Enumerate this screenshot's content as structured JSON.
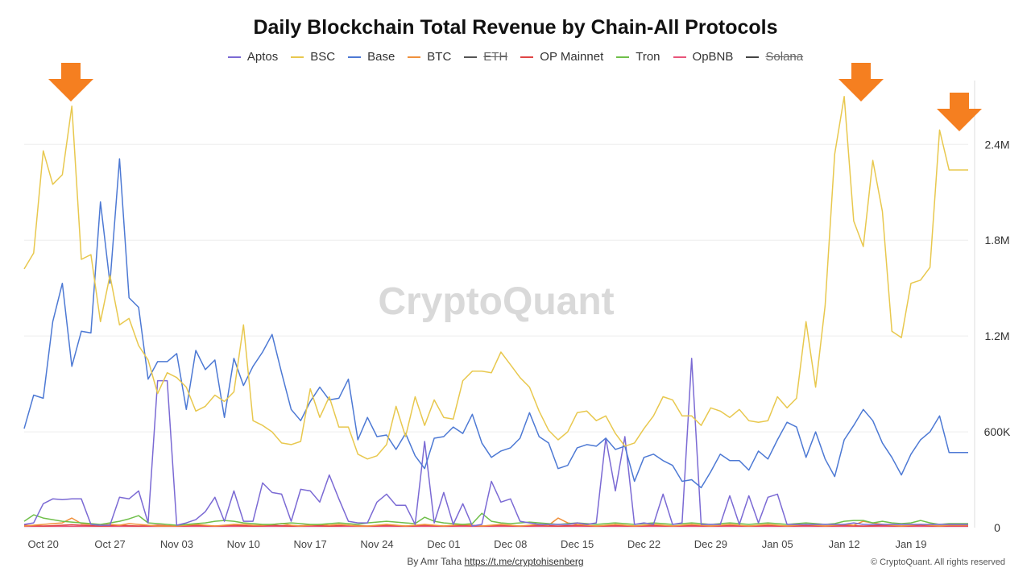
{
  "chart_data": {
    "type": "line",
    "title": "Daily Blockchain Total Revenue by Chain-All Protocols",
    "x_tick_labels": [
      "Oct 20",
      "Oct 27",
      "Nov 03",
      "Nov 10",
      "Nov 17",
      "Nov 24",
      "Dec 01",
      "Dec 08",
      "Dec 15",
      "Dec 22",
      "Dec 29",
      "Jan 05",
      "Jan 12",
      "Jan 19"
    ],
    "y_tick_labels": [
      "0",
      "600K",
      "1.2M",
      "1.8M",
      "2.4M"
    ],
    "ylim": [
      0,
      2800000
    ],
    "x_start": "Oct 20",
    "grid": true,
    "watermark": "CryptoQuant",
    "legend_position": "top-center",
    "series": [
      {
        "name": "Aptos",
        "color": "#7b6ad4",
        "hidden": false,
        "values": [
          20000,
          30000,
          150000,
          180000,
          175000,
          180000,
          180000,
          20000,
          15000,
          15000,
          190000,
          180000,
          230000,
          30000,
          920000,
          920000,
          15000,
          30000,
          50000,
          100000,
          190000,
          40000,
          230000,
          40000,
          40000,
          280000,
          220000,
          210000,
          40000,
          240000,
          230000,
          160000,
          330000,
          180000,
          40000,
          30000,
          30000,
          160000,
          210000,
          140000,
          140000,
          20000,
          540000,
          30000,
          220000,
          20000,
          150000,
          10000,
          20000,
          290000,
          160000,
          180000,
          40000,
          30000,
          20000,
          20000,
          20000,
          20000,
          30000,
          20000,
          30000,
          560000,
          230000,
          570000,
          20000,
          30000,
          20000,
          210000,
          20000,
          30000,
          1060000,
          20000,
          20000,
          20000,
          200000,
          20000,
          200000,
          30000,
          190000,
          210000,
          20000,
          20000,
          20000,
          20000,
          20000,
          20000,
          20000,
          30000,
          20000,
          20000,
          20000,
          20000,
          20000,
          20000,
          20000,
          20000,
          20000,
          20000,
          20000,
          20000
        ]
      },
      {
        "name": "BSC",
        "color": "#e8c84e",
        "hidden": false,
        "values": [
          1620000,
          1720000,
          2360000,
          2150000,
          2210000,
          2640000,
          1680000,
          1710000,
          1290000,
          1580000,
          1270000,
          1310000,
          1140000,
          1050000,
          840000,
          970000,
          940000,
          880000,
          730000,
          760000,
          830000,
          790000,
          850000,
          1270000,
          670000,
          640000,
          600000,
          530000,
          520000,
          540000,
          870000,
          690000,
          820000,
          630000,
          630000,
          460000,
          430000,
          450000,
          520000,
          760000,
          570000,
          820000,
          640000,
          800000,
          690000,
          680000,
          920000,
          980000,
          980000,
          970000,
          1100000,
          1020000,
          940000,
          880000,
          730000,
          610000,
          550000,
          600000,
          720000,
          730000,
          670000,
          700000,
          590000,
          510000,
          530000,
          620000,
          700000,
          820000,
          800000,
          700000,
          700000,
          640000,
          750000,
          730000,
          690000,
          740000,
          670000,
          660000,
          670000,
          820000,
          750000,
          810000,
          1290000,
          880000,
          1390000,
          2340000,
          2700000,
          1920000,
          1760000,
          2300000,
          1980000,
          1230000,
          1190000,
          1530000,
          1550000,
          1630000,
          2490000,
          2240000,
          2240000,
          2240000
        ]
      },
      {
        "name": "Base",
        "color": "#4d79d4",
        "hidden": false,
        "values": [
          620000,
          830000,
          810000,
          1290000,
          1530000,
          1010000,
          1230000,
          1220000,
          2040000,
          1530000,
          2310000,
          1440000,
          1380000,
          930000,
          1040000,
          1040000,
          1090000,
          740000,
          1110000,
          990000,
          1050000,
          690000,
          1060000,
          890000,
          1010000,
          1100000,
          1210000,
          970000,
          740000,
          670000,
          790000,
          880000,
          800000,
          810000,
          930000,
          550000,
          690000,
          570000,
          580000,
          490000,
          590000,
          450000,
          370000,
          560000,
          570000,
          630000,
          590000,
          710000,
          530000,
          440000,
          480000,
          500000,
          560000,
          720000,
          570000,
          530000,
          370000,
          390000,
          500000,
          520000,
          510000,
          560000,
          490000,
          510000,
          290000,
          440000,
          460000,
          420000,
          390000,
          290000,
          300000,
          250000,
          350000,
          460000,
          420000,
          420000,
          360000,
          480000,
          430000,
          550000,
          660000,
          630000,
          440000,
          600000,
          430000,
          320000,
          550000,
          640000,
          740000,
          670000,
          530000,
          440000,
          330000,
          460000,
          550000,
          600000,
          700000,
          470000,
          470000,
          470000
        ]
      },
      {
        "name": "BTC",
        "color": "#f0913c",
        "hidden": false,
        "values": [
          10000,
          15000,
          20000,
          25000,
          30000,
          60000,
          25000,
          20000,
          15000,
          20000,
          15000,
          25000,
          20000,
          15000,
          10000,
          10000,
          10000,
          15000,
          20000,
          15000,
          10000,
          15000,
          20000,
          20000,
          15000,
          15000,
          20000,
          25000,
          15000,
          10000,
          15000,
          20000,
          15000,
          20000,
          15000,
          10000,
          10000,
          15000,
          20000,
          15000,
          10000,
          15000,
          20000,
          15000,
          10000,
          15000,
          20000,
          15000,
          10000,
          15000,
          20000,
          15000,
          10000,
          15000,
          20000,
          15000,
          60000,
          30000,
          20000,
          15000,
          10000,
          15000,
          20000,
          15000,
          10000,
          15000,
          20000,
          15000,
          10000,
          15000,
          20000,
          15000,
          10000,
          15000,
          20000,
          15000,
          10000,
          15000,
          20000,
          15000,
          10000,
          15000,
          20000,
          15000,
          10000,
          15000,
          20000,
          15000,
          40000,
          30000,
          20000,
          15000,
          10000,
          15000,
          20000,
          15000,
          10000,
          15000,
          15000,
          15000
        ]
      },
      {
        "name": "ETH",
        "color": "#555555",
        "hidden": true,
        "values": []
      },
      {
        "name": "OP Mainnet",
        "color": "#e04545",
        "hidden": false,
        "values": [
          15000,
          12000,
          10000,
          12000,
          15000,
          18000,
          15000,
          12000,
          10000,
          12000,
          15000,
          12000,
          10000,
          12000,
          15000,
          12000,
          10000,
          12000,
          15000,
          12000,
          10000,
          12000,
          15000,
          12000,
          10000,
          12000,
          15000,
          12000,
          10000,
          12000,
          15000,
          12000,
          10000,
          12000,
          15000,
          12000,
          10000,
          12000,
          15000,
          12000,
          10000,
          12000,
          15000,
          12000,
          10000,
          12000,
          15000,
          12000,
          10000,
          12000,
          15000,
          12000,
          10000,
          12000,
          15000,
          12000,
          10000,
          12000,
          15000,
          12000,
          10000,
          12000,
          15000,
          12000,
          10000,
          12000,
          15000,
          12000,
          10000,
          12000,
          15000,
          12000,
          10000,
          12000,
          15000,
          12000,
          10000,
          12000,
          15000,
          12000,
          10000,
          12000,
          15000,
          12000,
          10000,
          12000,
          15000,
          12000,
          10000,
          12000,
          15000,
          12000,
          10000,
          12000,
          15000,
          12000,
          10000,
          12000,
          12000,
          12000
        ]
      },
      {
        "name": "Tron",
        "color": "#6fbf4a",
        "hidden": false,
        "values": [
          40000,
          80000,
          60000,
          50000,
          40000,
          35000,
          30000,
          25000,
          20000,
          30000,
          40000,
          55000,
          75000,
          30000,
          25000,
          20000,
          15000,
          20000,
          25000,
          30000,
          40000,
          45000,
          40000,
          30000,
          25000,
          20000,
          20000,
          25000,
          30000,
          25000,
          20000,
          20000,
          25000,
          30000,
          25000,
          20000,
          30000,
          35000,
          40000,
          35000,
          30000,
          25000,
          65000,
          40000,
          30000,
          25000,
          20000,
          25000,
          90000,
          40000,
          30000,
          25000,
          30000,
          35000,
          30000,
          25000,
          20000,
          25000,
          30000,
          25000,
          20000,
          25000,
          30000,
          25000,
          20000,
          25000,
          30000,
          25000,
          20000,
          25000,
          30000,
          25000,
          20000,
          25000,
          30000,
          25000,
          20000,
          25000,
          30000,
          25000,
          20000,
          25000,
          30000,
          25000,
          20000,
          25000,
          40000,
          45000,
          45000,
          30000,
          40000,
          30000,
          25000,
          30000,
          45000,
          30000,
          20000,
          25000,
          25000,
          25000
        ]
      },
      {
        "name": "OpBNB",
        "color": "#e8557a",
        "hidden": false,
        "values": [
          8000,
          8000,
          8000,
          8000,
          8000,
          8000,
          8000,
          8000,
          8000,
          8000,
          8000,
          8000,
          8000,
          8000,
          8000,
          8000,
          8000,
          8000,
          8000,
          8000,
          8000,
          8000,
          8000,
          8000,
          8000,
          8000,
          8000,
          8000,
          8000,
          8000,
          8000,
          8000,
          8000,
          8000,
          8000,
          8000,
          8000,
          8000,
          8000,
          8000,
          8000,
          8000,
          8000,
          8000,
          8000,
          8000,
          8000,
          8000,
          8000,
          8000,
          8000,
          8000,
          8000,
          8000,
          8000,
          8000,
          8000,
          8000,
          8000,
          8000,
          8000,
          8000,
          8000,
          8000,
          8000,
          8000,
          8000,
          8000,
          8000,
          8000,
          8000,
          8000,
          8000,
          8000,
          8000,
          8000,
          8000,
          8000,
          8000,
          8000,
          8000,
          8000,
          8000,
          8000,
          8000,
          8000,
          8000,
          8000,
          8000,
          8000,
          8000,
          8000,
          8000,
          8000,
          8000,
          8000,
          8000,
          8000,
          8000,
          8000
        ]
      },
      {
        "name": "Solana",
        "color": "#444444",
        "hidden": true,
        "values": []
      }
    ]
  },
  "footer": {
    "by_label": "By Amr Taha",
    "link_text": "https://t.me/cryptohisenberg",
    "copyright": "© CryptoQuant. All rights reserved"
  },
  "annotations": {
    "arrow_color": "#f57f20"
  }
}
